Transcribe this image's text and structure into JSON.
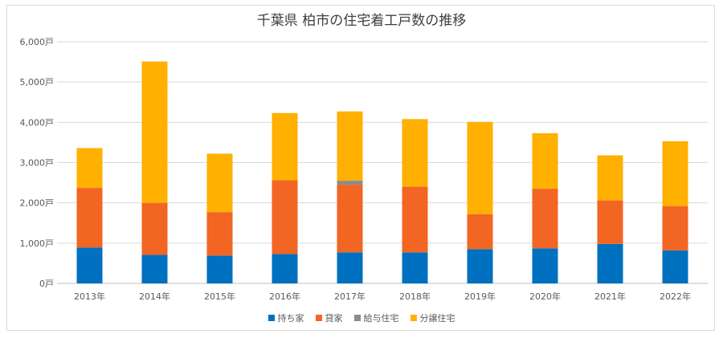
{
  "chart_data": {
    "type": "bar",
    "stacked": true,
    "title": "千葉県 柏市の住宅着工戸数の推移",
    "categories": [
      "2013年",
      "2014年",
      "2015年",
      "2016年",
      "2017年",
      "2018年",
      "2019年",
      "2020年",
      "2021年",
      "2022年"
    ],
    "y_ticks": [
      "0戸",
      "1,000戸",
      "2,000戸",
      "3,000戸",
      "4,000戸",
      "5,000戸",
      "6,000戸"
    ],
    "ylim": [
      0,
      6000
    ],
    "grid": true,
    "legend_position": "bottom",
    "series": [
      {
        "name": "持ち家",
        "color": "#0070c0",
        "values": [
          890,
          710,
          690,
          730,
          770,
          770,
          850,
          870,
          980,
          820
        ]
      },
      {
        "name": "貸家",
        "color": "#f26522",
        "values": [
          1480,
          1290,
          1080,
          1830,
          1680,
          1630,
          870,
          1480,
          1080,
          1100
        ]
      },
      {
        "name": "給与住宅",
        "color": "#8c8c8c",
        "values": [
          0,
          0,
          0,
          0,
          100,
          0,
          0,
          0,
          0,
          0
        ]
      },
      {
        "name": "分譲住宅",
        "color": "#ffb000",
        "values": [
          990,
          3510,
          1450,
          1670,
          1720,
          1680,
          2290,
          1380,
          1120,
          1610
        ]
      }
    ]
  }
}
